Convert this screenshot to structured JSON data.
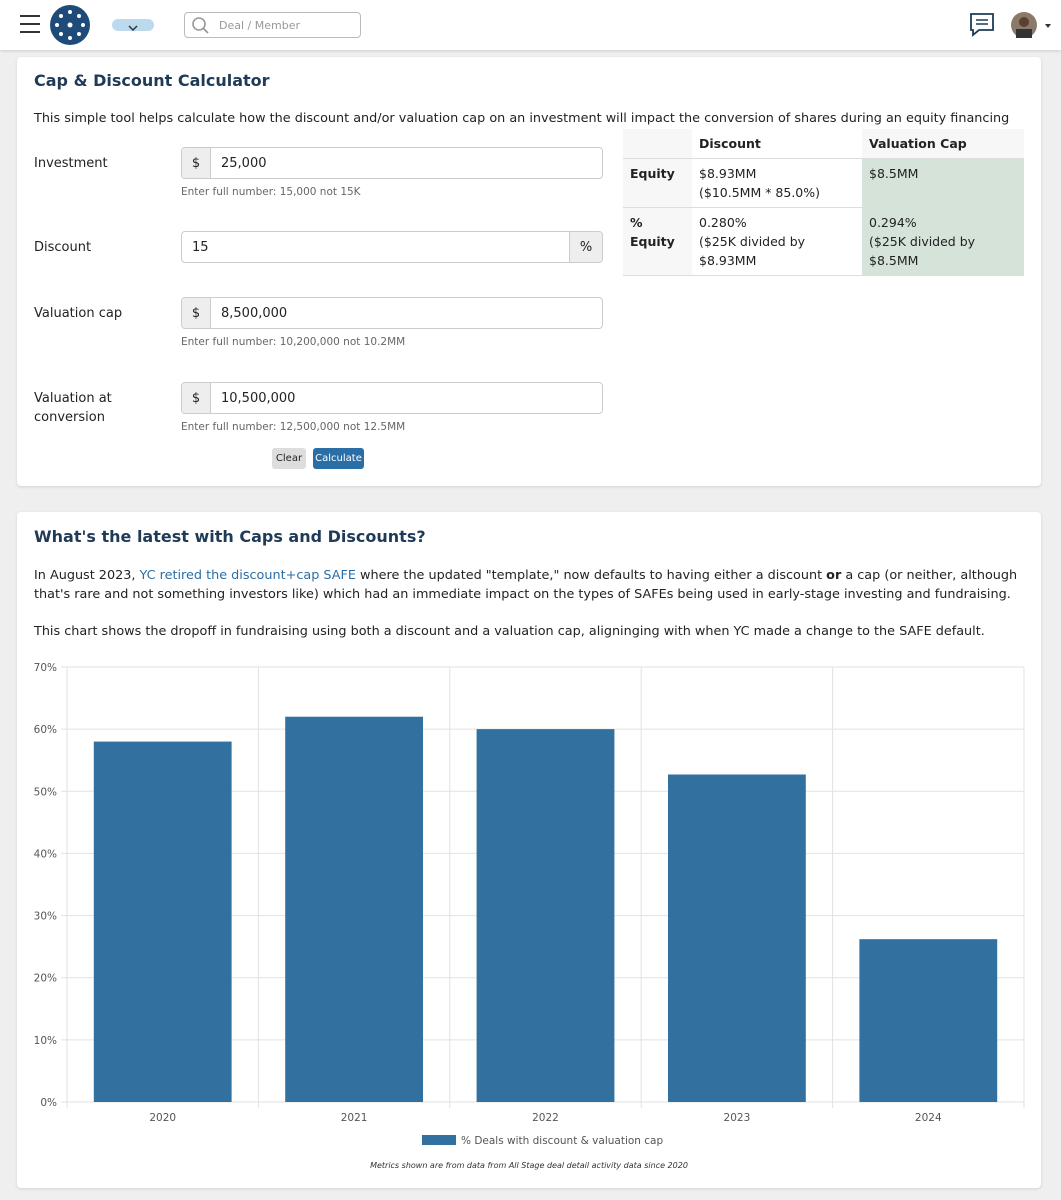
{
  "header": {
    "search_placeholder": "Deal / Member"
  },
  "calculator": {
    "title": "Cap & Discount Calculator",
    "description": "This simple tool helps calculate how the discount and/or valuation cap on an investment will impact the conversion of shares during an equity financing",
    "fields": [
      {
        "label": "Investment",
        "prefix": "$",
        "value": "25,000",
        "hint": "Enter full number: 15,000 not 15K"
      },
      {
        "label": "Discount",
        "value": "15",
        "suffix": "%"
      },
      {
        "label": "Valuation cap",
        "prefix": "$",
        "value": "8,500,000",
        "hint": "Enter full number: 10,200,000 not 10.2MM"
      },
      {
        "label": "Valuation at conversion",
        "prefix": "$",
        "value": "10,500,000",
        "hint": "Enter full number: 12,500,000 not 12.5MM"
      }
    ],
    "buttons": [
      "Clear",
      "Calculate"
    ],
    "results": {
      "headers": [
        "Discount",
        "Valuation Cap"
      ],
      "rows": [
        {
          "label": "Equity",
          "discount": [
            "$8.93MM",
            "($10.5MM * 85.0%)"
          ],
          "cap": [
            "$8.5MM"
          ]
        },
        {
          "label": "% Equity",
          "discount": [
            "0.280%",
            "($25K divided by $8.93MM"
          ],
          "cap": [
            "0.294%",
            "($25K divided by $8.5MM"
          ]
        }
      ]
    }
  },
  "article": {
    "title": "What's the latest with Caps and Discounts?",
    "p1_start": "In August 2023, ",
    "p1_link": "YC retired the discount+cap SAFE",
    "p1_mid": " where the updated \"template,\" now defaults to having either a discount ",
    "p1_bold": "or",
    "p1_end": " a cap (or neither, although that's rare and not something investors like) which had an immediate impact on the types of SAFEs being used in early-stage investing and fundraising.",
    "p2": "This chart shows the dropoff in fundraising using both a discount and a valuation cap, aligninging with when YC made a change to the SAFE default."
  },
  "chart_data": {
    "type": "bar",
    "categories": [
      "2020",
      "2021",
      "2022",
      "2023",
      "2024"
    ],
    "series": [
      {
        "name": "% Deals with discount & valuation cap",
        "color": "#31709f",
        "values": [
          58,
          62,
          60,
          52.7,
          26.2
        ]
      }
    ],
    "ylim": [
      0,
      70
    ],
    "yticks": [
      {
        "value": 0,
        "label": "0%"
      },
      {
        "value": 10,
        "label": "10%"
      },
      {
        "value": 20,
        "label": "20%"
      },
      {
        "value": 30,
        "label": "30%"
      },
      {
        "value": 40,
        "label": "40%"
      },
      {
        "value": 50,
        "label": "50%"
      },
      {
        "value": 60,
        "label": "60%"
      },
      {
        "value": 70,
        "label": "70%"
      }
    ],
    "grid": true,
    "legend": "bottom",
    "footnote": "Metrics shown are from data from All Stage deal detail activity data since 2020"
  }
}
